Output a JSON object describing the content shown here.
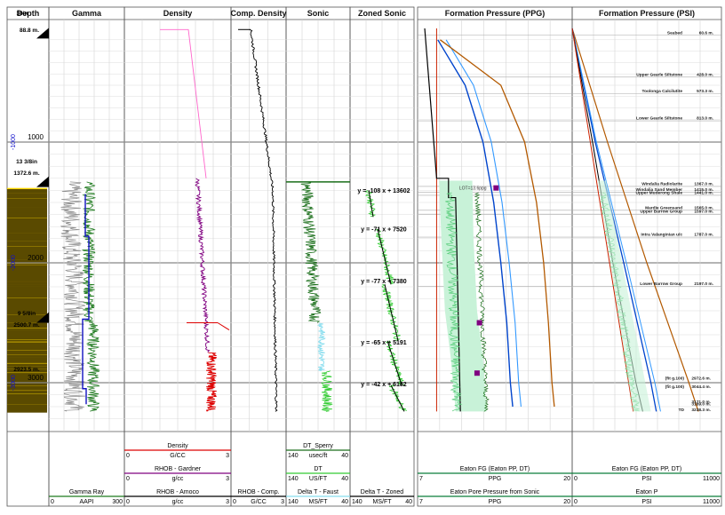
{
  "colors": {
    "gamma_raw": "#8a8a8a",
    "gamma_smooth": "#1f7a1f",
    "shale_line": "#1010c0",
    "density_gardner": "#800080",
    "density_amoco": "#dd0000",
    "density_top": "#ff66cc",
    "comp_density": "#000000",
    "sonic": "#1a6e1a",
    "sonic_dt": "#33cc33",
    "sonic_cyan": "#88ddee",
    "zone_trend": "#000000",
    "ppg_fill": "#c8f2d8",
    "pp_points": "#55cc77",
    "pp_dark": "#1a6e1a",
    "frac_grad": "#0044cc",
    "frac_grad2": "#3399ff",
    "overburden": "#b35900",
    "hydrostatic": "#cc2200",
    "lot_marker": "#800080",
    "lith_shale": "#5a4a00",
    "lith_sand": "#ffd700"
  },
  "depth_track": {
    "header": "Depth",
    "labels": [
      "30in",
      "88.8 m.",
      "13 3/8in",
      "1372.6 m.",
      "9 5/8in",
      "2500.7 m.",
      "2923.5 m."
    ],
    "ticks": [
      "1000",
      "2000",
      "3000"
    ],
    "depth_labels": [
      "-1000",
      "-2000",
      "-3000"
    ]
  },
  "gamma_track": {
    "header": "Gamma",
    "curve": "Gamma Ray",
    "min": "0",
    "unit": "AAPI",
    "max": "300"
  },
  "density_track": {
    "header": "Density",
    "curves": [
      {
        "name": "Density",
        "min": "0",
        "unit": "G/CC",
        "max": "3"
      },
      {
        "name": "RHOB - Gardner",
        "min": "0",
        "unit": "g/cc",
        "max": "3"
      },
      {
        "name": "RHOB - Amoco",
        "min": "0",
        "unit": "g/cc",
        "max": "3"
      }
    ]
  },
  "comp_density_track": {
    "header": "Comp. Density",
    "curve": "RHOB - Comp.",
    "min": "0",
    "unit": "G/CC",
    "max": "3"
  },
  "sonic_track": {
    "header": "Sonic",
    "curves": [
      {
        "name": "DT_Sperry",
        "min": "140",
        "unit": "usec/ft",
        "max": "40"
      },
      {
        "name": "DT",
        "min": "140",
        "unit": "US/FT",
        "max": "40"
      },
      {
        "name": "Delta T - Faust",
        "min": "140",
        "unit": "MS/FT",
        "max": "40"
      }
    ]
  },
  "zoned_sonic_track": {
    "header": "Zoned Sonic",
    "curve": "Delta T - Zoned",
    "min": "140",
    "unit": "MS/FT",
    "max": "40",
    "equations": [
      "y = -108 x + 13602",
      "y = -71 x + 7520",
      "y = -77 x + 7380",
      "y = -65 x + 5191",
      "y = -42 x + 6182"
    ]
  },
  "ppg_track": {
    "header": "Formation Pressure (PPG)",
    "curves": [
      {
        "name": "Eaton FG (Eaton PP, DT)",
        "min": "7",
        "unit": "PPG",
        "max": "20"
      },
      {
        "name": "Eaton Pore Pressure from Sonic",
        "min": "7",
        "unit": "PPG",
        "max": "20"
      }
    ],
    "lot_label": "LOT=13.6ppg"
  },
  "psi_track": {
    "header": "Formation Pressure (PSI)",
    "curves": [
      {
        "name": "Eaton FG (Eaton PP, DT)",
        "min": "0",
        "unit": "PSI",
        "max": "11000"
      },
      {
        "name": "Eaton P",
        "min": "0",
        "unit": "PSI",
        "max": "11000"
      }
    ],
    "formation_tops": [
      {
        "name": "Seabed",
        "depth": "60.6 m."
      },
      {
        "name": "Upper Gearle Siltstone",
        "depth": "428.0 m."
      },
      {
        "name": "Toolonga Calcilutite",
        "depth": "573.3 m."
      },
      {
        "name": "Lower Gearle Siltstone",
        "depth": "813.0 m."
      },
      {
        "name": "Windalia Radiolarite",
        "depth": "1367.0 m."
      },
      {
        "name": "Windalia Sand Member",
        "depth": "1415.0 m."
      },
      {
        "name": "Upper Muderong Shale",
        "depth": "1441.0 m."
      },
      {
        "name": "Mardie Greensand",
        "depth": "1565.0 m."
      },
      {
        "name": "Upper Barrow Group",
        "depth": "1597.0 m."
      },
      {
        "name": "Intra Valanginian u/c",
        "depth": "1787.0 m."
      },
      {
        "name": "Lower Barrow Group",
        "depth": "2197.0 m."
      }
    ],
    "bottom_labels": [
      "(fit g.100)",
      "2972.6 m.",
      "(fit g.100)",
      "3044.4 m.",
      "3171.0 m.",
      "3189.0 m.",
      "TD",
      "3238.3 m."
    ]
  },
  "chart_data": {
    "type": "line",
    "y_axis": "Depth (m)",
    "depth_range": [
      0,
      3300
    ],
    "depth_ticks": [
      1000,
      2000,
      3000
    ],
    "casing_shoes": [
      {
        "size": "30in",
        "depth_m": 88.8
      },
      {
        "size": "13 3/8in",
        "depth_m": 1372.6
      },
      {
        "size": "9 5/8in",
        "depth_m": 2500.7
      }
    ],
    "gamma_ray_aapi": {
      "x": [
        1300,
        1500,
        1800,
        2000,
        2200,
        2500,
        2800,
        3000,
        3200
      ],
      "values": [
        80,
        95,
        110,
        105,
        100,
        120,
        115,
        100,
        110
      ]
    },
    "density_rhob_gcc": {
      "depth": [
        100,
        1300,
        1500,
        2000,
        2500,
        2800,
        3000,
        3200
      ],
      "values": [
        1.6,
        2.05,
        2.2,
        2.3,
        2.35,
        2.45,
        2.4,
        2.5
      ]
    },
    "comp_density_gcc": {
      "depth": [
        100,
        1000,
        1500,
        2000,
        2500,
        3000,
        3200
      ],
      "values": [
        1.4,
        1.9,
        2.05,
        2.15,
        2.2,
        2.25,
        2.3
      ]
    },
    "sonic_dt_usft": {
      "depth": [
        1300,
        1500,
        2000,
        2500,
        2800,
        3000,
        3200
      ],
      "values": [
        120,
        110,
        100,
        95,
        85,
        90,
        88
      ]
    },
    "ppg": {
      "hydrostatic": [
        8.6,
        8.6,
        8.6
      ],
      "pore_pressure": {
        "depth": [
          100,
          1300,
          1500,
          2000,
          2500,
          2800,
          3000,
          3200
        ],
        "values": [
          8.6,
          8.8,
          9.0,
          9.2,
          9.5,
          10.2,
          10.6,
          10.8
        ]
      },
      "fracture_gradient": {
        "depth": [
          100,
          500,
          1000,
          1500,
          2000,
          2500,
          3000,
          3200
        ],
        "values": [
          8.7,
          11.0,
          12.5,
          13.4,
          14.0,
          14.5,
          14.8,
          15.0
        ]
      },
      "overburden": {
        "depth": [
          100,
          500,
          1000,
          1500,
          2000,
          2500,
          3000,
          3200
        ],
        "values": [
          8.9,
          14.0,
          16.0,
          17.0,
          17.6,
          18.0,
          18.3,
          18.5
        ]
      },
      "lot": {
        "depth": 1380,
        "value": 13.6
      }
    },
    "psi": {
      "pore_pressure": {
        "depth": [
          0,
          1000,
          2000,
          3000,
          3240
        ],
        "values": [
          0,
          1500,
          3000,
          4700,
          5200
        ]
      },
      "fracture_gradient": {
        "depth": [
          0,
          1000,
          2000,
          3000,
          3240
        ],
        "values": [
          0,
          1700,
          3800,
          5800,
          6200
        ]
      },
      "overburden": {
        "depth": [
          0,
          1000,
          2000,
          3000,
          3240
        ],
        "values": [
          0,
          2600,
          5500,
          8600,
          9300
        ]
      }
    }
  }
}
